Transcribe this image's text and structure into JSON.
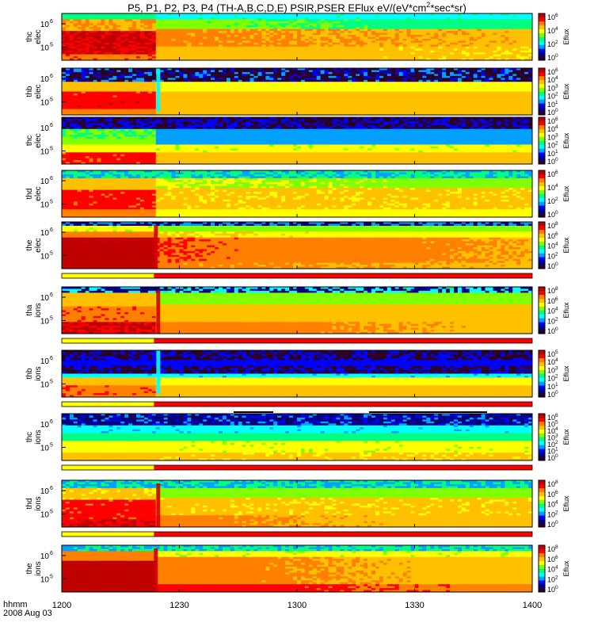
{
  "title": {
    "prefix": "P5, P1, P2, P3, P4 (TH-A,B,C,D,E) PSIR,PSER EFlux eV/(eV*cm",
    "sup": "2",
    "suffix": "*sec*sr)"
  },
  "footer": {
    "time_label": "hhmm",
    "date_label": "2008 Aug 03"
  },
  "chart_data": {
    "type": "heatmap",
    "title": "P5, P1, P2, P3, P4 (TH-A,B,C,D,E) PSIR,PSER EFlux eV/(eV*cm2*sec*sr)",
    "x_axis": {
      "label": "hhmm",
      "range_minutes": [
        0,
        120
      ],
      "ticks": [
        {
          "label": "1200",
          "minute": 0
        },
        {
          "label": "1230",
          "minute": 30
        },
        {
          "label": "1300",
          "minute": 60
        },
        {
          "label": "1330",
          "minute": 90
        },
        {
          "label": "1400",
          "minute": 120
        }
      ]
    },
    "colorbar_label": "Eflux",
    "panels": [
      {
        "name": "thc elec",
        "line1": "thc",
        "line2": "elec",
        "yticks": [
          "10",
          "10"
        ],
        "yexp": [
          "6",
          "5"
        ],
        "cticks": [
          [
            "10",
            "6"
          ],
          [
            "10",
            "4"
          ],
          [
            "10",
            "2"
          ],
          [
            "10",
            "0"
          ]
        ],
        "profile": "elecA",
        "bar": false
      },
      {
        "name": "thb elec",
        "line1": "thb",
        "line2": "elec",
        "yticks": [
          "10",
          "10"
        ],
        "yexp": [
          "6",
          "5"
        ],
        "cticks": [
          [
            "10",
            "6"
          ],
          [
            "10",
            "4"
          ],
          [
            "10",
            "3"
          ],
          [
            "10",
            "2"
          ],
          [
            "10",
            "1"
          ],
          [
            "10",
            "0"
          ]
        ],
        "profile": "elecB",
        "bar": false
      },
      {
        "name": "thc elec",
        "line1": "thc",
        "line2": "elec",
        "yticks": [
          "10",
          "10"
        ],
        "yexp": [
          "6",
          "5"
        ],
        "cticks": [
          [
            "10",
            "6"
          ],
          [
            "10",
            "4"
          ],
          [
            "10",
            "3"
          ],
          [
            "10",
            "2"
          ],
          [
            "10",
            "1"
          ],
          [
            "10",
            "0"
          ]
        ],
        "profile": "elecC",
        "bar": false
      },
      {
        "name": "thd elec",
        "line1": "thd",
        "line2": "elec",
        "yticks": [
          "10",
          "10"
        ],
        "yexp": [
          "6",
          "5"
        ],
        "cticks": [
          [
            "10",
            "6"
          ],
          [
            "10",
            "4"
          ],
          [
            "10",
            "2"
          ],
          [
            "10",
            "0"
          ]
        ],
        "profile": "elecD",
        "bar": true
      },
      {
        "name": "the elec",
        "line1": "the",
        "line2": "elec",
        "yticks": [
          "10",
          "10"
        ],
        "yexp": [
          "6",
          "5"
        ],
        "cticks": [
          [
            "10",
            "8"
          ],
          [
            "10",
            "6"
          ],
          [
            "10",
            "4"
          ],
          [
            "10",
            "2"
          ],
          [
            "10",
            "0"
          ]
        ],
        "profile": "elecE",
        "bar": true
      },
      {
        "name": "tha ions",
        "line1": "tha",
        "line2": "ions",
        "yticks": [
          "10",
          "10"
        ],
        "yexp": [
          "6",
          "5"
        ],
        "cticks": [
          [
            "10",
            "8"
          ],
          [
            "10",
            "6"
          ],
          [
            "10",
            "4"
          ],
          [
            "10",
            "2"
          ],
          [
            "10",
            "0"
          ]
        ],
        "profile": "ionsA",
        "bar": true
      },
      {
        "name": "thb ions",
        "line1": "thb",
        "line2": "ions",
        "yticks": [
          "10",
          "10"
        ],
        "yexp": [
          "6",
          "5"
        ],
        "cticks": [
          [
            "10",
            "5"
          ],
          [
            "10",
            "4"
          ],
          [
            "10",
            "3"
          ],
          [
            "10",
            "2"
          ],
          [
            "10",
            "1"
          ],
          [
            "10",
            "0"
          ]
        ],
        "profile": "ionsB",
        "bar": true
      },
      {
        "name": "thc ions",
        "line1": "thc",
        "line2": "ions",
        "yticks": [
          "10",
          "10"
        ],
        "yexp": [
          "6",
          "5"
        ],
        "cticks": [
          [
            "10",
            "6"
          ],
          [
            "10",
            "5"
          ],
          [
            "10",
            "4"
          ],
          [
            "10",
            "3"
          ],
          [
            "10",
            "2"
          ],
          [
            "10",
            "1"
          ],
          [
            "10",
            "0"
          ]
        ],
        "profile": "ionsC",
        "bar": true
      },
      {
        "name": "thd ions",
        "line1": "thd",
        "line2": "ions",
        "yticks": [
          "10",
          "10"
        ],
        "yexp": [
          "6",
          "5"
        ],
        "cticks": [
          [
            "10",
            "8"
          ],
          [
            "10",
            "6"
          ],
          [
            "10",
            "4"
          ],
          [
            "10",
            "2"
          ],
          [
            "10",
            "0"
          ]
        ],
        "profile": "ionsD",
        "bar": true
      },
      {
        "name": "the ions",
        "line1": "the",
        "line2": "ions",
        "yticks": [
          "10",
          "10"
        ],
        "yexp": [
          "6",
          "5"
        ],
        "cticks": [
          [
            "10",
            "8"
          ],
          [
            "10",
            "6"
          ],
          [
            "10",
            "4"
          ],
          [
            "10",
            "2"
          ],
          [
            "10",
            "0"
          ]
        ],
        "profile": "ionsE",
        "bar": false
      }
    ],
    "mode_bar_colors": {
      "early": "#ffff00",
      "late": "#ff0000"
    },
    "mode_switch_minute": 23.5,
    "colormap": [
      "#2a002a",
      "#000080",
      "#0000ff",
      "#00a0ff",
      "#00ffff",
      "#00ff80",
      "#80ff00",
      "#ffff00",
      "#ffc000",
      "#ff8000",
      "#ff0000",
      "#c00000"
    ]
  }
}
